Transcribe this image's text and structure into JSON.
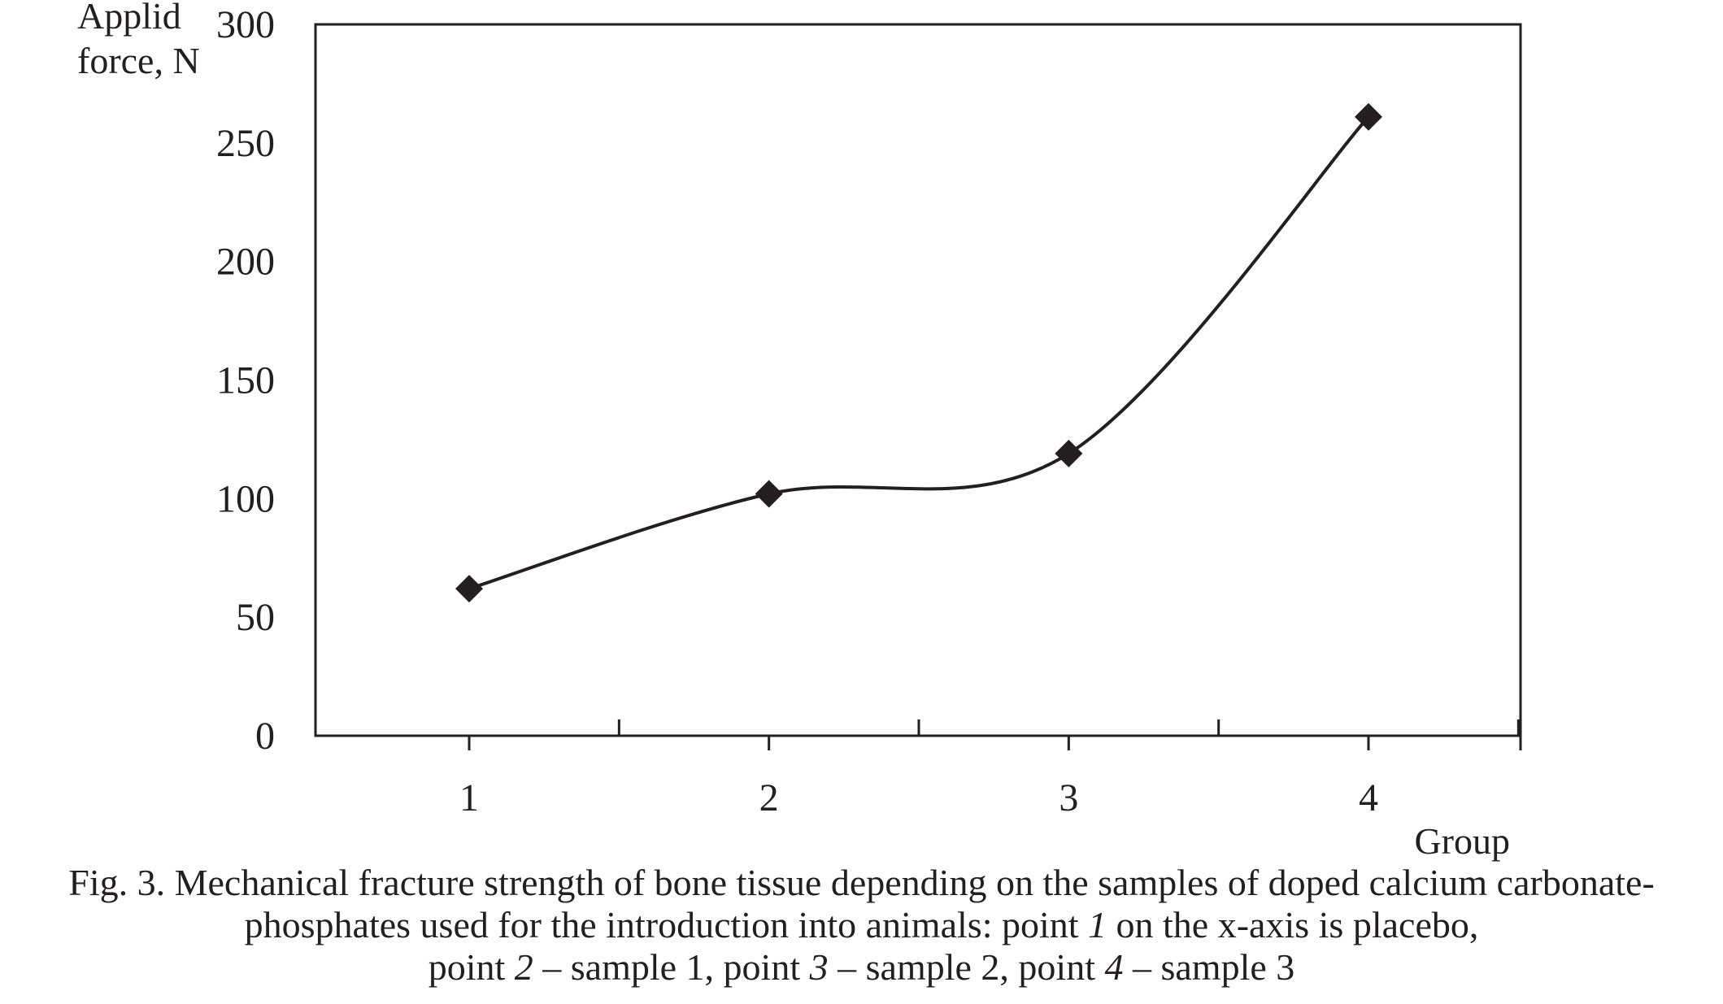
{
  "chart_data": {
    "type": "line",
    "x": [
      1,
      2,
      3,
      4
    ],
    "xticks": [
      "1",
      "2",
      "3",
      "4"
    ],
    "y": [
      62,
      102,
      119,
      261
    ],
    "ylim": [
      0,
      300
    ],
    "yticks": [
      0,
      50,
      100,
      150,
      200,
      250,
      300
    ],
    "xlabel": "Group",
    "ylabel_line1": "Applid",
    "ylabel_line2": "force, N",
    "marker": "diamond",
    "line_color": "#231f20",
    "smooth": true,
    "grid": false
  },
  "caption": {
    "line1": "Fig. 3. Mechanical fracture strength of bone tissue depending on the samples of doped calcium carbonate-",
    "line2_a": "phosphates used for the introduction into animals: point ",
    "line2_b": "1",
    "line2_c": " on the x-axis is placebo,",
    "line3_a": "point ",
    "line3_b": "2",
    "line3_c": " – sample 1, point ",
    "line3_d": "3",
    "line3_e": " – sample 2, point ",
    "line3_f": "4",
    "line3_g": " – sample 3"
  }
}
